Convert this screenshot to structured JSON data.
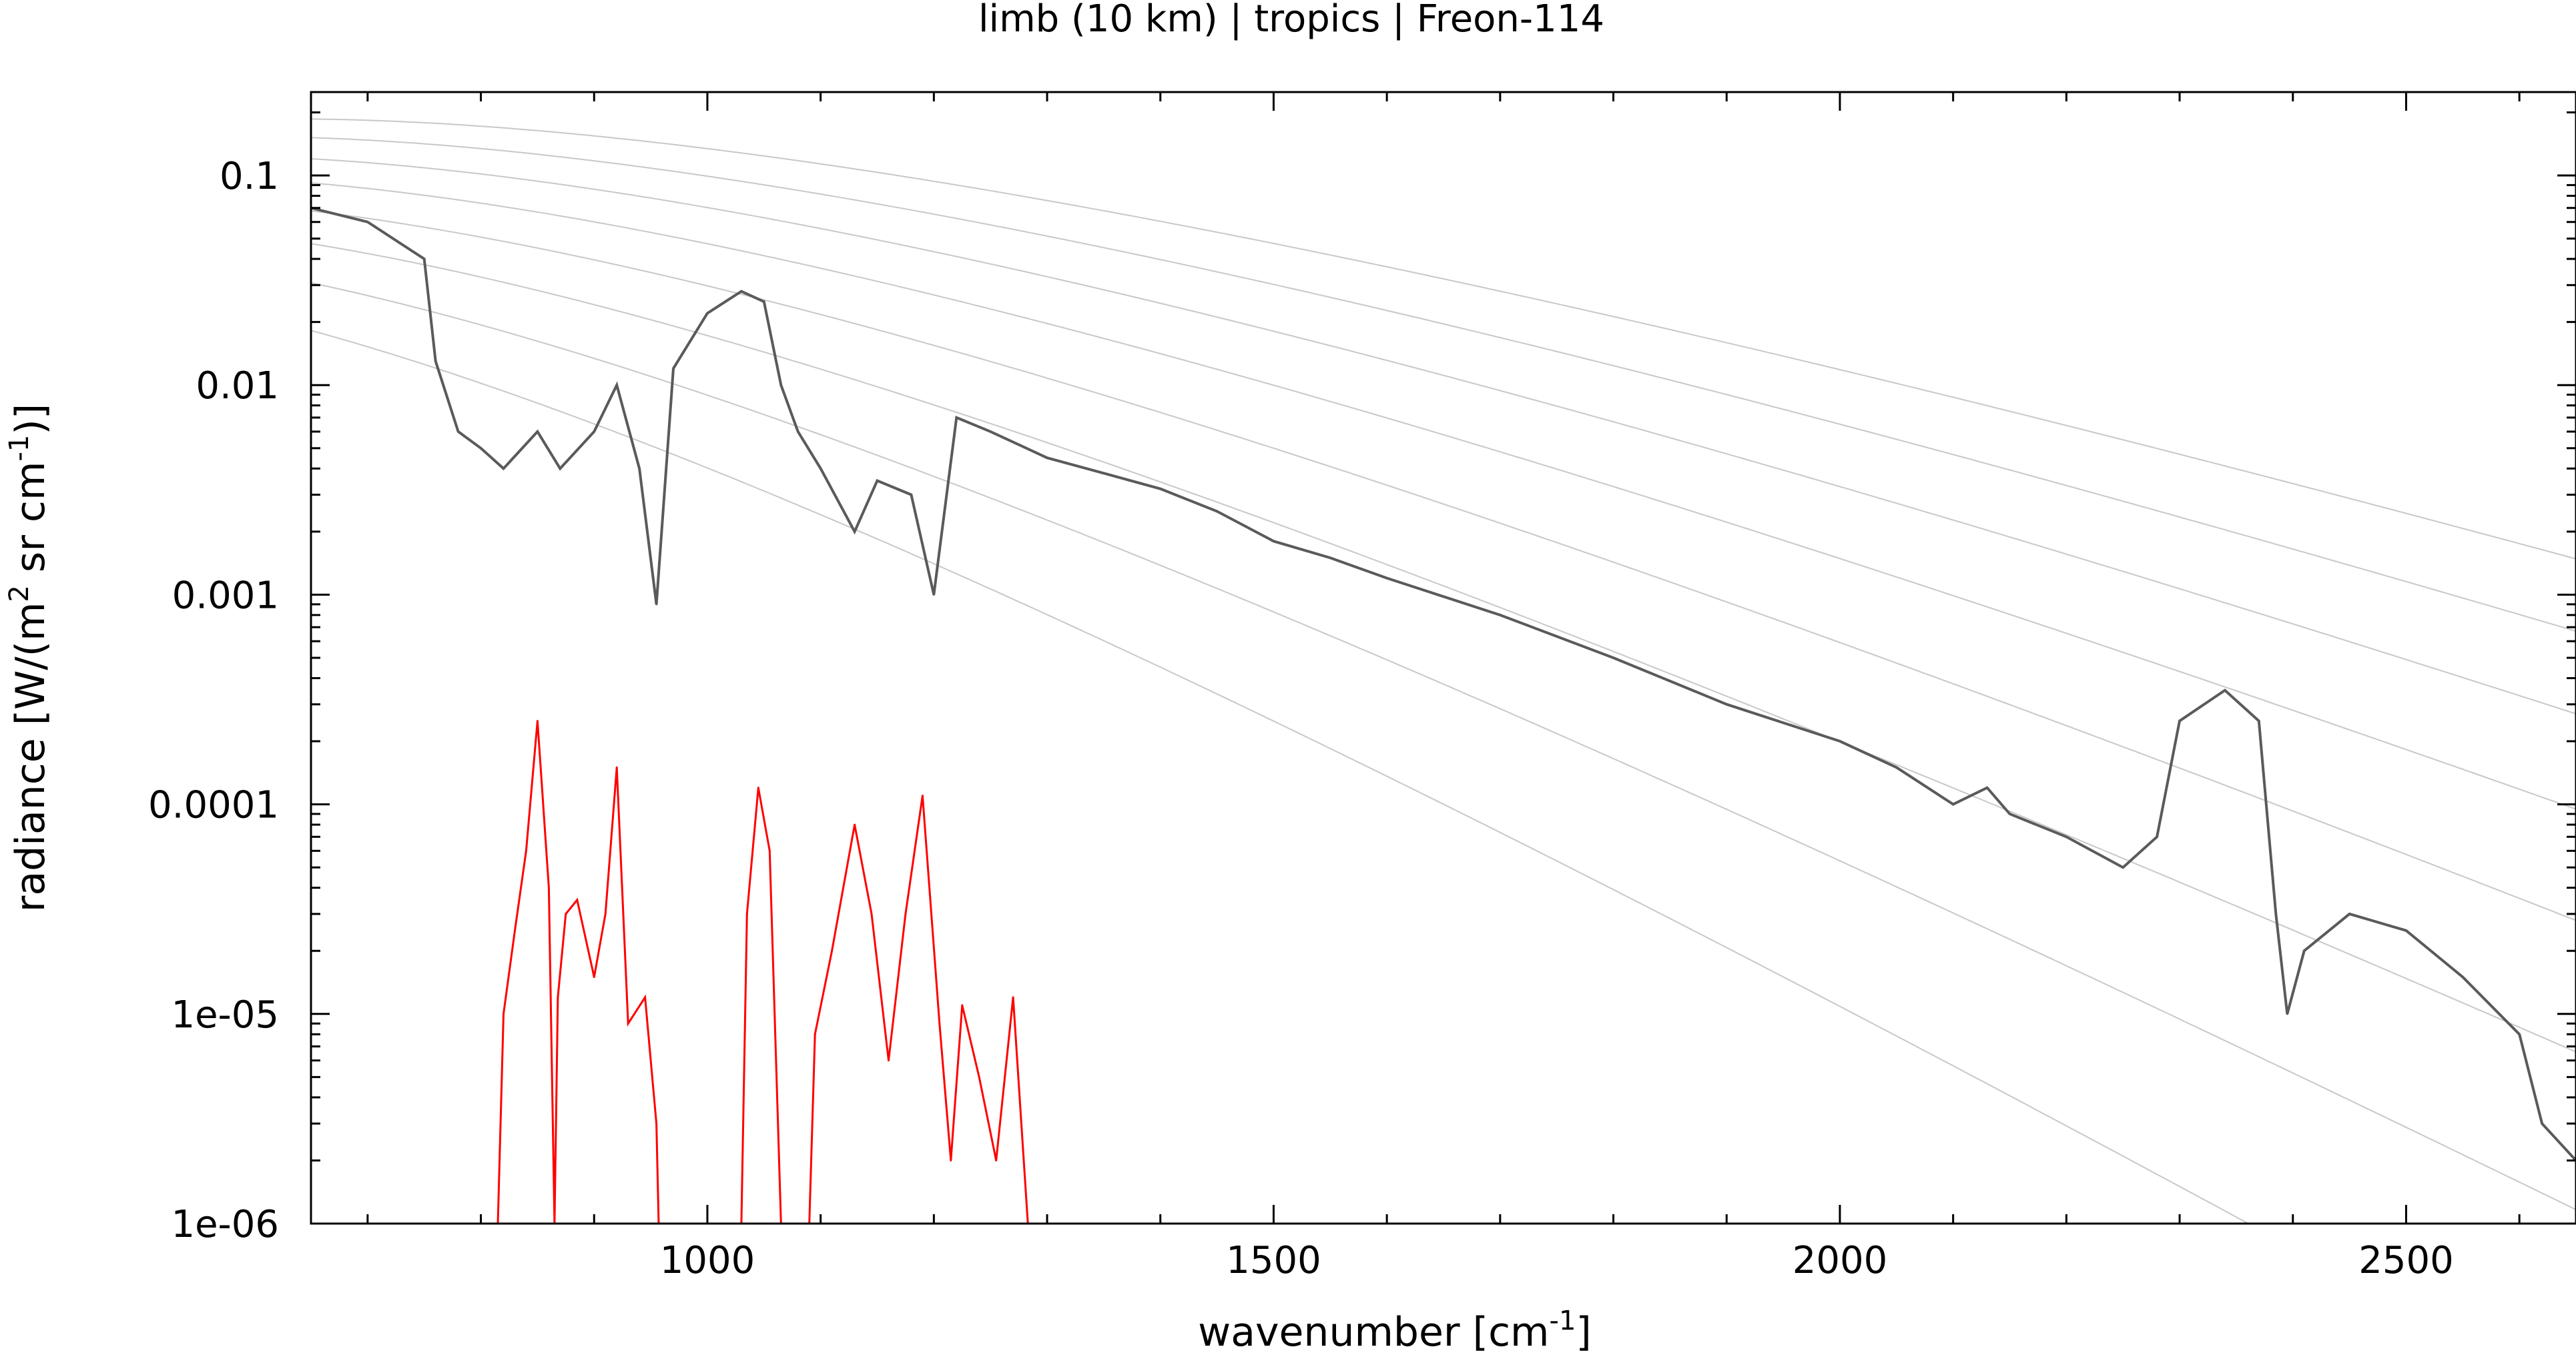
{
  "chart_data": {
    "type": "line",
    "title": "limb (10 km) | tropics | Freon-114",
    "xlabel": {
      "pre": "wavenumber [cm",
      "sup": "-1",
      "post": "]"
    },
    "ylabel": {
      "p1": "radiance [W/(m",
      "s1": "2",
      "p2": " sr cm",
      "s2": "-1",
      "p3": ")]"
    },
    "xlim": [
      650,
      2650
    ],
    "ylim": [
      1e-06,
      0.25
    ],
    "yscale": "log",
    "grid": false,
    "legend": "none",
    "x_ticks": [
      {
        "value": 1000,
        "label": "1000"
      },
      {
        "value": 1500,
        "label": "1500"
      },
      {
        "value": 2000,
        "label": "2000"
      },
      {
        "value": 2500,
        "label": "2500"
      }
    ],
    "y_ticks": [
      {
        "value": 0.1,
        "label": "0.1"
      },
      {
        "value": 0.01,
        "label": "0.01"
      },
      {
        "value": 0.001,
        "label": "0.001"
      },
      {
        "value": 0.0001,
        "label": "0.0001"
      },
      {
        "value": 1e-05,
        "label": "1e-05"
      },
      {
        "value": 1e-06,
        "label": "1e-06"
      }
    ],
    "reference_temperatures_K": [
      180,
      200,
      220,
      240,
      260,
      280,
      300,
      320
    ],
    "series": [
      {
        "color": "#5a5a5a",
        "x": [
          650,
          700,
          750,
          760,
          780,
          800,
          820,
          850,
          870,
          900,
          920,
          940,
          955,
          970,
          1000,
          1030,
          1050,
          1065,
          1080,
          1100,
          1130,
          1150,
          1180,
          1200,
          1220,
          1250,
          1300,
          1350,
          1400,
          1450,
          1500,
          1550,
          1600,
          1700,
          1800,
          1900,
          2000,
          2050,
          2100,
          2130,
          2150,
          2200,
          2250,
          2280,
          2300,
          2340,
          2370,
          2385,
          2395,
          2410,
          2450,
          2500,
          2550,
          2600,
          2620,
          2650
        ],
        "y": [
          0.07,
          0.06,
          0.04,
          0.013,
          0.006,
          0.005,
          0.004,
          0.006,
          0.004,
          0.006,
          0.01,
          0.004,
          0.0009,
          0.012,
          0.022,
          0.028,
          0.025,
          0.01,
          0.006,
          0.004,
          0.002,
          0.0035,
          0.003,
          0.001,
          0.007,
          0.006,
          0.0045,
          0.0038,
          0.0032,
          0.0025,
          0.0018,
          0.0015,
          0.0012,
          0.0008,
          0.0005,
          0.0003,
          0.0002,
          0.00015,
          0.0001,
          0.00012,
          9e-05,
          7e-05,
          5e-05,
          7e-05,
          0.00025,
          0.00035,
          0.00025,
          3e-05,
          1e-05,
          2e-05,
          3e-05,
          2.5e-05,
          1.5e-05,
          8e-06,
          3e-06,
          2e-06
        ]
      },
      {
        "color": "#ff0000",
        "x": [
          815,
          820,
          830,
          840,
          850,
          860,
          865,
          868,
          875,
          885,
          900,
          910,
          920,
          930,
          945,
          955,
          957,
          1030,
          1035,
          1045,
          1055,
          1065,
          1067,
          1090,
          1095,
          1110,
          1130,
          1145,
          1160,
          1175,
          1190,
          1205,
          1215,
          1225,
          1240,
          1255,
          1270,
          1283
        ],
        "y": [
          1e-06,
          1e-05,
          2.5e-05,
          6e-05,
          0.00025,
          4e-05,
          1e-06,
          1.2e-05,
          3e-05,
          3.5e-05,
          1.5e-05,
          3e-05,
          0.00015,
          9e-06,
          1.2e-05,
          3e-06,
          1e-06,
          1e-06,
          3e-05,
          0.00012,
          6e-05,
          1e-06,
          1e-06,
          1e-06,
          8e-06,
          2e-05,
          8e-05,
          3e-05,
          6e-06,
          3e-05,
          0.00011,
          9e-06,
          2e-06,
          1.1e-05,
          5e-06,
          2e-06,
          1.2e-05,
          1e-06
        ]
      }
    ]
  }
}
